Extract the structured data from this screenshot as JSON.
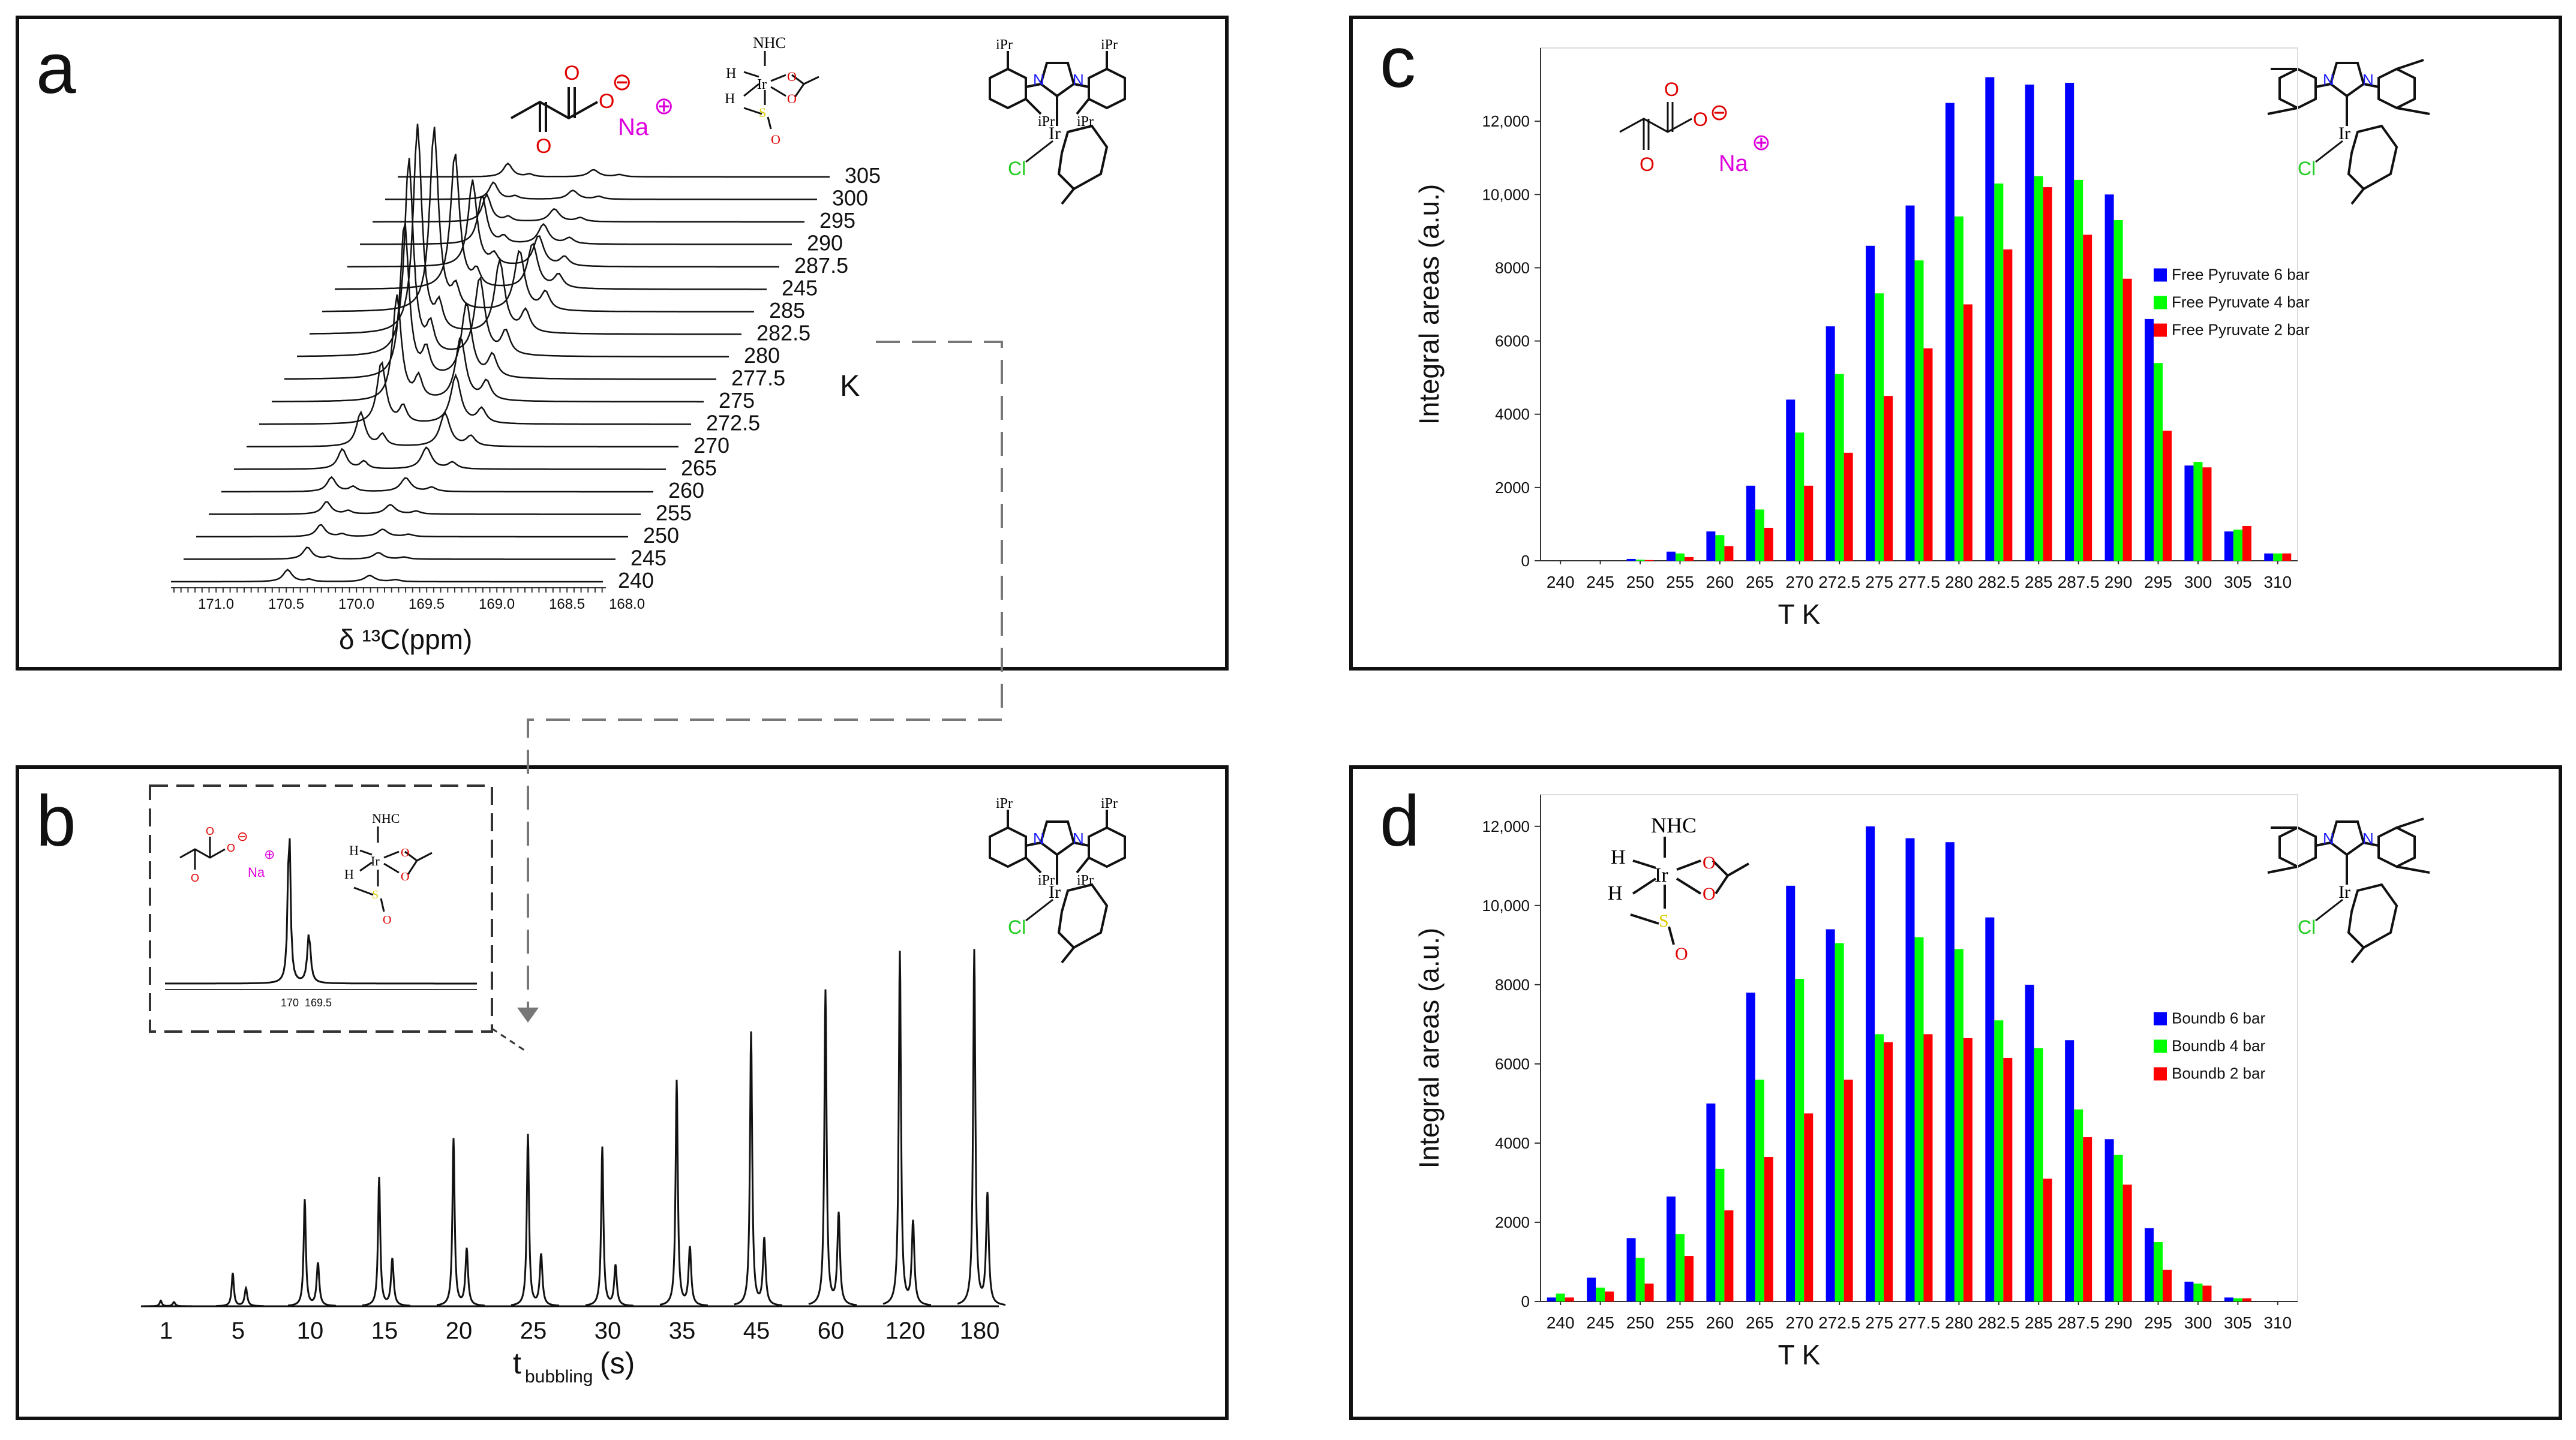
{
  "panels": {
    "a": {
      "letter": "a",
      "chart_type": "stacked_spectra",
      "xlabel": "δ ¹³C(ppm)",
      "x_ticks": [
        "171.0",
        "170.5",
        "170.0",
        "169.5",
        "169.0",
        "168.5",
        "168.0"
      ],
      "unit_label": "K",
      "temperatures": [
        305,
        300,
        295,
        290,
        287.5,
        245,
        285,
        282.5,
        280,
        277.5,
        275,
        272.5,
        270,
        265,
        260,
        255,
        250,
        245,
        240
      ],
      "temperature_labels": [
        "305",
        "300",
        "295",
        "290",
        "287.5",
        "245",
        "285",
        "282.5",
        "280",
        "277.5",
        "275",
        "272.5",
        "270",
        "265",
        "260",
        "255",
        "250",
        "245",
        "240"
      ]
    },
    "b": {
      "letter": "b",
      "xlabel_main": "t",
      "xlabel_sub": "bubbling",
      "xlabel_unit": "(s)",
      "times": [
        "1",
        "5",
        "10",
        "15",
        "20",
        "25",
        "30",
        "35",
        "45",
        "60",
        "120",
        "180"
      ],
      "peak1_heights": [
        0.04,
        0.24,
        0.77,
        0.93,
        1.21,
        1.24,
        1.15,
        1.63,
        1.98,
        2.28,
        2.56,
        2.57
      ],
      "peak2_heights": [
        0.03,
        0.13,
        0.31,
        0.34,
        0.41,
        0.37,
        0.29,
        0.42,
        0.48,
        0.66,
        0.6,
        0.8
      ],
      "inset_ticks": [
        "170",
        "169.5"
      ]
    },
    "c": {
      "letter": "c",
      "chart_data": {
        "type": "bar",
        "title": "",
        "xlabel": "T  K",
        "ylabel": "Integral areas  (a.u.)",
        "ylim": [
          0,
          14000
        ],
        "y_ticks": [
          0,
          2000,
          4000,
          6000,
          8000,
          10000,
          12000
        ],
        "y_tick_labels": [
          "0",
          "2000",
          "4000",
          "6000",
          "8000",
          "10,000",
          "12,000"
        ],
        "categories": [
          "240",
          "245",
          "250",
          "255",
          "260",
          "265",
          "270",
          "272.5",
          "275",
          "277.5",
          "280",
          "282.5",
          "285",
          "287.5",
          "290",
          "295",
          "300",
          "305",
          "310"
        ],
        "series": [
          {
            "name": "Free Pyruvate 6 bar",
            "color": "#0000ff",
            "values": [
              0,
              0,
              50,
              250,
              800,
              2050,
              4400,
              6400,
              8600,
              9700,
              12500,
              13200,
              13000,
              13050,
              10000,
              6600,
              2600,
              800,
              200
            ]
          },
          {
            "name": "Free Pyruvate 4 bar",
            "color": "#00ff00",
            "values": [
              0,
              0,
              30,
              200,
              700,
              1400,
              3500,
              5100,
              7300,
              8200,
              9400,
              10300,
              10500,
              10400,
              9300,
              5400,
              2700,
              850,
              200
            ]
          },
          {
            "name": "Free Pyruvate 2 bar",
            "color": "#ff0000",
            "values": [
              0,
              0,
              20,
              100,
              400,
              900,
              2050,
              2950,
              4500,
              5800,
              7000,
              8500,
              10200,
              8900,
              7700,
              3550,
              2550,
              950,
              200
            ]
          }
        ],
        "legend": "right"
      }
    },
    "d": {
      "letter": "d",
      "chart_data": {
        "type": "bar",
        "title": "",
        "xlabel": "T  K",
        "ylabel": "Integral areas  (a.u.)",
        "ylim": [
          0,
          12800
        ],
        "y_ticks": [
          0,
          2000,
          4000,
          6000,
          8000,
          10000,
          12000
        ],
        "y_tick_labels": [
          "0",
          "2000",
          "4000",
          "6000",
          "8000",
          "10,000",
          "12,000"
        ],
        "categories": [
          "240",
          "245",
          "250",
          "255",
          "260",
          "265",
          "270",
          "272.5",
          "275",
          "277.5",
          "280",
          "282.5",
          "285",
          "287.5",
          "290",
          "295",
          "300",
          "305",
          "310"
        ],
        "series": [
          {
            "name": "Boundb 6 bar",
            "color": "#0000ff",
            "values": [
              100,
              600,
              1600,
              2650,
              5000,
              7800,
              10500,
              9400,
              12000,
              11700,
              11600,
              9700,
              8000,
              6600,
              4100,
              1850,
              500,
              100,
              0
            ]
          },
          {
            "name": "Boundb 4 bar",
            "color": "#00ff00",
            "values": [
              200,
              350,
              1100,
              1700,
              3350,
              5600,
              8150,
              9050,
              6750,
              9200,
              8900,
              7100,
              6400,
              4850,
              3700,
              1500,
              450,
              80,
              0
            ]
          },
          {
            "name": "Boundb 2 bar",
            "color": "#ff0000",
            "values": [
              100,
              250,
              450,
              1150,
              2300,
              3650,
              4750,
              5600,
              6550,
              6750,
              6650,
              6150,
              3100,
              4150,
              2950,
              800,
              400,
              80,
              0
            ]
          }
        ],
        "legend": "right"
      }
    }
  },
  "molecules": {
    "pyruvate_charge": "⊖",
    "sodium_charge": "⊕",
    "sodium": "Na",
    "o": "O",
    "nhc": "NHC",
    "h": "H",
    "ir": "Ir",
    "s": "S",
    "cl": "Cl",
    "n": "N",
    "ipr": "iPr"
  }
}
